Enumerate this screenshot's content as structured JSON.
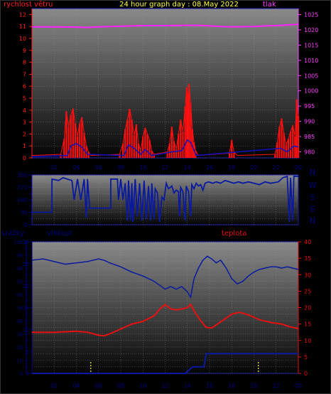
{
  "header": {
    "wind_label": "rychlost větru",
    "title": "24 hour graph day : 08.May 2022",
    "pressure_label": "tlak",
    "rain_label": "srážky",
    "humidity_label": "vlhkost",
    "temp_label": "teplota"
  },
  "colors": {
    "background": "#000000",
    "frame": "#1a1ab0",
    "wind_axis": "#ff2020",
    "pressure_axis": "#ff40ff",
    "title": "#ffff40",
    "wind_bar": "#ff1010",
    "gust": "#1010c0",
    "pressure_line": "#ff20ff",
    "direction_line": "#0a1aa0",
    "humidity_line": "#0a1aa0",
    "temp_line": "#e81010",
    "rain_line": "#0a1aa0",
    "rain_marker": "#ffff00",
    "x_tick": "#000080",
    "compass": "#000080"
  },
  "x_ticks": [
    "02",
    "04",
    "06",
    "08",
    "10",
    "12",
    "14",
    "16",
    "18",
    "20",
    "22",
    "00"
  ],
  "chart_data": [
    {
      "type": "bar",
      "name": "wind-pressure",
      "xlim": [
        0,
        24
      ],
      "y_left": {
        "label": "rychlost větru",
        "ylim": [
          0,
          12.5
        ],
        "ticks": [
          0,
          1,
          2,
          3,
          4,
          5,
          6,
          7,
          8,
          9,
          10,
          11,
          12
        ]
      },
      "y_right": {
        "label": "tlak",
        "ylim": [
          978,
          1027
        ],
        "ticks": [
          980,
          985,
          990,
          995,
          1000,
          1005,
          1010,
          1015,
          1020,
          1025
        ]
      },
      "wind_speed": [
        [
          0.0,
          0.2
        ],
        [
          2.6,
          0.3
        ],
        [
          2.9,
          1.6
        ],
        [
          3.1,
          3.9
        ],
        [
          3.3,
          2.6
        ],
        [
          3.5,
          3.6
        ],
        [
          3.7,
          4.1
        ],
        [
          3.9,
          2.9
        ],
        [
          4.1,
          1.8
        ],
        [
          4.3,
          2.9
        ],
        [
          4.5,
          3.4
        ],
        [
          4.7,
          2.1
        ],
        [
          4.9,
          1.0
        ],
        [
          5.1,
          0.5
        ],
        [
          5.3,
          0.2
        ],
        [
          7.9,
          0.3
        ],
        [
          8.2,
          1.2
        ],
        [
          8.4,
          2.4
        ],
        [
          8.6,
          3.2
        ],
        [
          8.8,
          4.1
        ],
        [
          9.0,
          3.2
        ],
        [
          9.2,
          1.9
        ],
        [
          9.4,
          2.8
        ],
        [
          9.6,
          1.2
        ],
        [
          9.8,
          0.6
        ],
        [
          10.0,
          1.8
        ],
        [
          10.2,
          2.5
        ],
        [
          10.4,
          2.0
        ],
        [
          10.6,
          1.5
        ],
        [
          10.8,
          0.6
        ],
        [
          11.0,
          0.3
        ],
        [
          12.2,
          0.5
        ],
        [
          12.4,
          1.2
        ],
        [
          12.6,
          2.6
        ],
        [
          12.8,
          1.4
        ],
        [
          13.0,
          0.7
        ],
        [
          13.2,
          2.0
        ],
        [
          13.4,
          3.2
        ],
        [
          13.6,
          2.2
        ],
        [
          13.8,
          4.3
        ],
        [
          13.95,
          5.9
        ],
        [
          14.05,
          4.9
        ],
        [
          14.15,
          6.2
        ],
        [
          14.3,
          4.6
        ],
        [
          14.45,
          2.4
        ],
        [
          14.6,
          1.3
        ],
        [
          14.75,
          0.6
        ],
        [
          15.0,
          0.2
        ],
        [
          17.8,
          0.4
        ],
        [
          18.0,
          1.5
        ],
        [
          18.2,
          0.5
        ],
        [
          18.5,
          0.2
        ],
        [
          21.9,
          0.3
        ],
        [
          22.1,
          1.3
        ],
        [
          22.3,
          2.6
        ],
        [
          22.5,
          3.3
        ],
        [
          22.7,
          2.1
        ],
        [
          22.9,
          1.1
        ],
        [
          23.1,
          1.6
        ],
        [
          23.3,
          2.2
        ],
        [
          23.5,
          2.7
        ],
        [
          23.7,
          1.8
        ],
        [
          23.85,
          4.9
        ],
        [
          24.0,
          3.5
        ]
      ],
      "wind_gust": [
        [
          0.0,
          0.1
        ],
        [
          3.2,
          0.2
        ],
        [
          3.5,
          1.0
        ],
        [
          4.0,
          1.2
        ],
        [
          4.5,
          0.9
        ],
        [
          5.0,
          0.3
        ],
        [
          8.3,
          0.2
        ],
        [
          8.7,
          1.1
        ],
        [
          9.2,
          0.8
        ],
        [
          9.8,
          0.3
        ],
        [
          10.2,
          0.7
        ],
        [
          10.8,
          0.2
        ],
        [
          12.6,
          0.5
        ],
        [
          13.5,
          0.6
        ],
        [
          14.0,
          1.5
        ],
        [
          14.3,
          1.3
        ],
        [
          14.8,
          0.2
        ],
        [
          22.4,
          0.8
        ],
        [
          23.0,
          0.5
        ],
        [
          23.6,
          1.0
        ],
        [
          24.0,
          0.9
        ]
      ],
      "pressure": [
        [
          0.0,
          1021.0
        ],
        [
          2.0,
          1021.0
        ],
        [
          4.0,
          1020.9
        ],
        [
          5.0,
          1020.8
        ],
        [
          6.0,
          1021.0
        ],
        [
          8.0,
          1021.2
        ],
        [
          10.0,
          1021.4
        ],
        [
          12.0,
          1021.4
        ],
        [
          14.0,
          1021.5
        ],
        [
          15.0,
          1021.5
        ],
        [
          16.0,
          1021.3
        ],
        [
          17.0,
          1021.1
        ],
        [
          18.0,
          1021.0
        ],
        [
          20.0,
          1021.1
        ],
        [
          21.0,
          1021.3
        ],
        [
          22.0,
          1021.4
        ],
        [
          23.0,
          1021.6
        ],
        [
          24.0,
          1021.8
        ]
      ]
    },
    {
      "type": "line",
      "name": "wind-direction",
      "xlim": [
        0,
        24
      ],
      "ylim": [
        0,
        360
      ],
      "y_ticks": [
        0,
        45,
        90,
        135,
        180,
        225,
        270,
        315,
        360
      ],
      "compass_labels": [
        "N",
        "W",
        "S",
        "E",
        "N"
      ],
      "direction": [
        [
          0.0,
          90
        ],
        [
          1.8,
          90
        ],
        [
          1.8,
          330
        ],
        [
          2.4,
          320
        ],
        [
          2.8,
          340
        ],
        [
          3.2,
          330
        ],
        [
          3.6,
          320
        ],
        [
          3.8,
          180
        ],
        [
          4.1,
          330
        ],
        [
          4.4,
          180
        ],
        [
          4.7,
          330
        ],
        [
          4.9,
          50
        ],
        [
          5.0,
          330
        ],
        [
          5.2,
          120
        ],
        [
          5.5,
          120
        ],
        [
          7.1,
          120
        ],
        [
          7.1,
          330
        ],
        [
          7.7,
          330
        ],
        [
          7.8,
          180
        ],
        [
          8.0,
          330
        ],
        [
          8.2,
          180
        ],
        [
          8.4,
          300
        ],
        [
          8.6,
          30
        ],
        [
          8.7,
          320
        ],
        [
          8.9,
          30
        ],
        [
          9.0,
          300
        ],
        [
          9.1,
          20
        ],
        [
          9.3,
          330
        ],
        [
          9.5,
          60
        ],
        [
          9.7,
          300
        ],
        [
          9.9,
          30
        ],
        [
          10.1,
          320
        ],
        [
          10.3,
          40
        ],
        [
          10.5,
          280
        ],
        [
          10.7,
          30
        ],
        [
          10.8,
          300
        ],
        [
          11.0,
          40
        ],
        [
          11.1,
          260
        ],
        [
          11.3,
          230
        ],
        [
          11.5,
          20
        ],
        [
          11.7,
          200
        ],
        [
          11.9,
          180
        ],
        [
          12.1,
          300
        ],
        [
          12.3,
          260
        ],
        [
          12.6,
          280
        ],
        [
          12.8,
          230
        ],
        [
          13.0,
          250
        ],
        [
          13.2,
          240
        ],
        [
          13.3,
          60
        ],
        [
          13.4,
          270
        ],
        [
          13.6,
          240
        ],
        [
          13.8,
          30
        ],
        [
          13.9,
          280
        ],
        [
          14.1,
          240
        ],
        [
          14.3,
          60
        ],
        [
          14.4,
          290
        ],
        [
          14.6,
          260
        ],
        [
          14.8,
          300
        ],
        [
          15.0,
          280
        ],
        [
          15.2,
          290
        ],
        [
          15.4,
          250
        ],
        [
          15.6,
          300
        ],
        [
          15.9,
          310
        ],
        [
          16.3,
          300
        ],
        [
          16.6,
          310
        ],
        [
          17.0,
          300
        ],
        [
          17.4,
          320
        ],
        [
          17.8,
          310
        ],
        [
          18.2,
          300
        ],
        [
          18.6,
          310
        ],
        [
          19.0,
          300
        ],
        [
          19.5,
          310
        ],
        [
          20.0,
          300
        ],
        [
          20.5,
          290
        ],
        [
          21.0,
          310
        ],
        [
          21.5,
          300
        ],
        [
          22.2,
          310
        ],
        [
          22.6,
          340
        ],
        [
          23.0,
          350
        ],
        [
          23.2,
          20
        ],
        [
          23.3,
          340
        ],
        [
          23.5,
          30
        ],
        [
          23.6,
          350
        ],
        [
          24.0,
          350
        ]
      ]
    },
    {
      "type": "line",
      "name": "humidity-temperature-rain",
      "xlim": [
        0,
        24
      ],
      "y_rain": {
        "label": "srážky",
        "ylim": [
          0,
          100
        ],
        "ticks": [
          0,
          5,
          10,
          15,
          20,
          25,
          30,
          35,
          40,
          45,
          50,
          55,
          60,
          65,
          70,
          75,
          80,
          85,
          90,
          95,
          100
        ]
      },
      "y_humidity": {
        "label": "vlhkost",
        "ylim": [
          0,
          30
        ],
        "ticks": [
          0,
          5,
          10,
          15,
          20,
          25,
          30
        ]
      },
      "y_temp": {
        "label": "teplota",
        "ylim": [
          0,
          40
        ],
        "ticks": [
          0,
          5,
          10,
          15,
          20,
          25,
          30,
          35,
          40
        ]
      },
      "humidity_series": [
        [
          0.0,
          86
        ],
        [
          1.0,
          87
        ],
        [
          2.0,
          85
        ],
        [
          3.0,
          83
        ],
        [
          4.0,
          84
        ],
        [
          5.0,
          85
        ],
        [
          5.5,
          86
        ],
        [
          6.0,
          87
        ],
        [
          6.5,
          86
        ],
        [
          7.0,
          84
        ],
        [
          8.0,
          81
        ],
        [
          9.0,
          77
        ],
        [
          10.0,
          74
        ],
        [
          11.0,
          70
        ],
        [
          11.5,
          67
        ],
        [
          12.0,
          64
        ],
        [
          12.5,
          66
        ],
        [
          13.0,
          64
        ],
        [
          13.5,
          66
        ],
        [
          14.0,
          62
        ],
        [
          14.3,
          58
        ],
        [
          14.6,
          72
        ],
        [
          15.0,
          80
        ],
        [
          15.4,
          86
        ],
        [
          15.8,
          89
        ],
        [
          16.2,
          87
        ],
        [
          16.6,
          84
        ],
        [
          17.0,
          86
        ],
        [
          17.5,
          80
        ],
        [
          18.0,
          72
        ],
        [
          18.5,
          68
        ],
        [
          19.0,
          70
        ],
        [
          19.5,
          74
        ],
        [
          20.0,
          77
        ],
        [
          20.5,
          79
        ],
        [
          21.0,
          80
        ],
        [
          21.5,
          81
        ],
        [
          22.0,
          81
        ],
        [
          22.5,
          80
        ],
        [
          23.0,
          81
        ],
        [
          23.5,
          80
        ],
        [
          24.0,
          79
        ]
      ],
      "temperature_series": [
        [
          0.0,
          12.5
        ],
        [
          2.0,
          12.5
        ],
        [
          4.0,
          12.8
        ],
        [
          5.0,
          12.5
        ],
        [
          6.0,
          11.6
        ],
        [
          6.5,
          11.4
        ],
        [
          7.0,
          12.0
        ],
        [
          8.0,
          13.5
        ],
        [
          9.0,
          15.0
        ],
        [
          10.0,
          15.8
        ],
        [
          11.0,
          17.5
        ],
        [
          11.5,
          19.5
        ],
        [
          12.0,
          20.9
        ],
        [
          12.5,
          19.6
        ],
        [
          13.0,
          19.3
        ],
        [
          13.5,
          19.6
        ],
        [
          14.0,
          20.0
        ],
        [
          14.3,
          21.0
        ],
        [
          14.7,
          18.5
        ],
        [
          15.2,
          16.0
        ],
        [
          15.7,
          14.0
        ],
        [
          16.2,
          13.8
        ],
        [
          16.8,
          15.2
        ],
        [
          17.5,
          16.8
        ],
        [
          18.0,
          18.0
        ],
        [
          18.7,
          18.6
        ],
        [
          19.5,
          17.8
        ],
        [
          20.5,
          16.3
        ],
        [
          21.5,
          15.5
        ],
        [
          22.5,
          15.0
        ],
        [
          23.2,
          14.2
        ],
        [
          24.0,
          13.6
        ]
      ],
      "rain_series": [
        [
          0.0,
          0
        ],
        [
          13.8,
          0
        ],
        [
          14.5,
          5
        ],
        [
          15.5,
          5
        ],
        [
          15.7,
          15
        ],
        [
          24.0,
          15
        ]
      ],
      "rain_markers": [
        5.3,
        20.4
      ]
    }
  ]
}
